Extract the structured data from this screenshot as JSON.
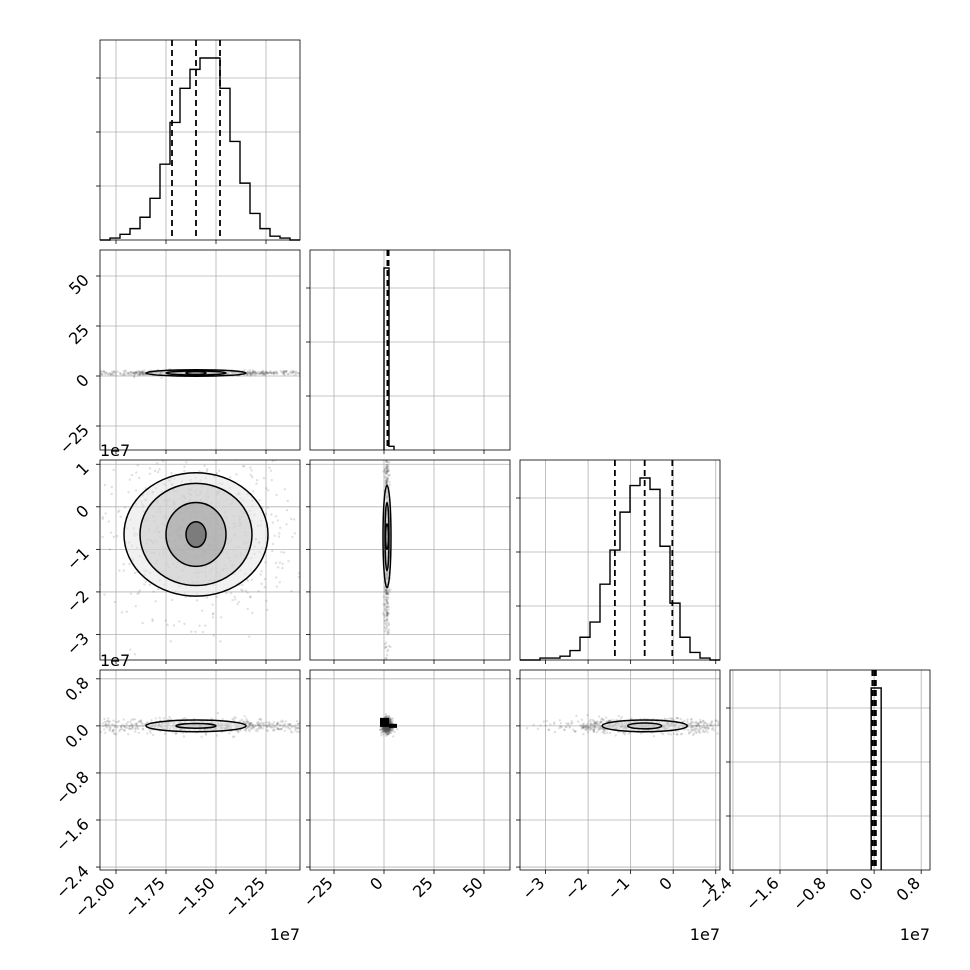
{
  "chart_data": {
    "type": "corner",
    "parameters": [
      "p0",
      "p1",
      "p2",
      "p3"
    ],
    "ranges": {
      "p0": [
        -20800000.0,
        -10800000.0
      ],
      "p1": [
        -37,
        63
      ],
      "p2": [
        -36000000.0,
        11000000.0
      ],
      "p3": [
        -24500000.0,
        9500000.0
      ]
    },
    "tick_values": {
      "p0": [
        -20000000.0,
        -17500000.0,
        -15000000.0,
        -12500000.0
      ],
      "p1": [
        -25,
        0,
        25,
        50
      ],
      "p2": [
        -30000000.0,
        -20000000.0,
        -10000000.0,
        0,
        10000000.0
      ],
      "p3": [
        -24000000.0,
        -16000000.0,
        -8000000.0,
        0,
        8000000.0
      ]
    },
    "tick_labels": {
      "p0": [
        "−2.00",
        "−1.75",
        "−1.50",
        "−1.25"
      ],
      "p1": [
        "−25",
        "0",
        "25",
        "50"
      ],
      "p2": [
        "−3",
        "−2",
        "−1",
        "0",
        "1"
      ],
      "p3": [
        "−2.4",
        "−1.6",
        "−0.8",
        "0.0",
        "0.8"
      ]
    },
    "offset_labels": {
      "p0": "1e7",
      "p2": "1e7",
      "p3": "1e7"
    },
    "quantiles": {
      "p0": [
        -17200000.0,
        -16000000.0,
        -14800000.0
      ],
      "p1": [
        1.7,
        2.0,
        2.3
      ],
      "p2": [
        -13700000.0,
        -6700000.0,
        -200000.0
      ],
      "p3": [
        -300000.0,
        0.0,
        300000.0
      ]
    },
    "histograms": {
      "p0": {
        "edges_start": -20800000.0,
        "bin_width": 500000.0,
        "counts": [
          0,
          1,
          3,
          6,
          12,
          22,
          40,
          62,
          80,
          90,
          96,
          96,
          80,
          52,
          30,
          14,
          6,
          2,
          1,
          0
        ]
      },
      "p1": {
        "edges_start": 0,
        "bin_width": 2.5,
        "counts": [
          100,
          2
        ]
      },
      "p2": {
        "edges_start": -36000000.0,
        "bin_width": 2350000.0,
        "counts": [
          0,
          0,
          1,
          1,
          2,
          5,
          12,
          20,
          40,
          58,
          78,
          92,
          96,
          90,
          60,
          30,
          12,
          4,
          1,
          0
        ]
      },
      "p3": {
        "edges_start": -500000.0,
        "bin_width": 1700000.0,
        "counts": [
          100
        ]
      }
    },
    "pairs": [
      {
        "x": "p0",
        "y": "p1",
        "center": [
          -16000000.0,
          1.5
        ],
        "contour_radii": [
          [
            500000.0,
            0.4
          ],
          [
            1500000.0,
            1.0
          ],
          [
            2500000.0,
            1.6
          ]
        ],
        "spread": [
          2500000.0,
          0.5
        ],
        "points_range": [
          [
            -20500000.0,
            -11000000.0
          ],
          [
            0,
            3
          ]
        ]
      },
      {
        "x": "p0",
        "y": "p2",
        "center": [
          -16000000.0,
          -6500000.0
        ],
        "contour_radii": [
          [
            500000.0,
            3000000.0
          ],
          [
            1500000.0,
            7500000.0
          ],
          [
            2800000.0,
            12000000.0
          ],
          [
            3600000.0,
            14500000.0
          ]
        ],
        "spread": [
          2000000.0,
          8000000.0
        ],
        "points_range": [
          [
            -20500000.0,
            -11000000.0
          ],
          [
            -30000000.0,
            5000000.0
          ]
        ]
      },
      {
        "x": "p1",
        "y": "p2",
        "center": [
          1.5,
          -7000000.0
        ],
        "contour_radii": [
          [
            0.3,
            3000000.0
          ],
          [
            1.0,
            8000000.0
          ],
          [
            2.0,
            12000000.0
          ]
        ],
        "spread": [
          0.5,
          10000000.0
        ],
        "points_range": [
          [
            0,
            3
          ],
          [
            -30000000.0,
            10000000.0
          ]
        ]
      },
      {
        "x": "p0",
        "y": "p3",
        "center": [
          -16000000.0,
          0.0
        ],
        "contour_radii": [
          [
            1000000.0,
            400000.0
          ],
          [
            2500000.0,
            1000000.0
          ]
        ],
        "spread": [
          2500000.0,
          500000.0
        ],
        "points_range": [
          [
            -20500000.0,
            -11000000.0
          ],
          [
            -500000.0,
            500000.0
          ]
        ]
      },
      {
        "x": "p1",
        "y": "p3",
        "center": [
          1.5,
          0.0
        ],
        "contour_radii": [],
        "spread": [
          1.0,
          500000.0
        ],
        "points_range": [
          [
            -0.5,
            8
          ],
          [
            -1000000.0,
            1000000.0
          ]
        ]
      },
      {
        "x": "p2",
        "y": "p3",
        "center": [
          -6700000.0,
          0.0
        ],
        "contour_radii": [
          [
            4000000.0,
            500000.0
          ],
          [
            10000000.0,
            1000000.0
          ]
        ],
        "spread": [
          9000000.0,
          500000.0
        ],
        "points_range": [
          [
            -33000000.0,
            9000000.0
          ],
          [
            -500000.0,
            500000.0
          ]
        ]
      }
    ],
    "grid": true,
    "legend": "none"
  }
}
